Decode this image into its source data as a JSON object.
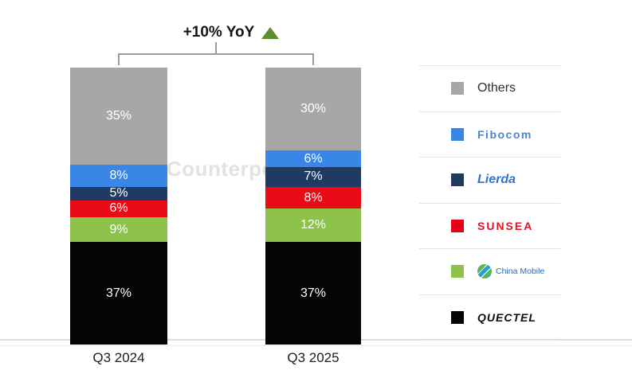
{
  "chart_data": {
    "type": "bar",
    "stacked": true,
    "unit": "%",
    "annotation": "+10% YoY",
    "annotation_direction": "up",
    "annotation_triangle_color": "#5e8b33",
    "watermark": "Counterpoint",
    "categories": [
      "Q3 2024",
      "Q3 2025"
    ],
    "series": [
      {
        "name": "Quectel",
        "color": "#050505",
        "values": [
          37,
          37
        ]
      },
      {
        "name": "China Mobile",
        "color": "#8dc24a",
        "values": [
          9,
          12
        ]
      },
      {
        "name": "Sunsea",
        "color": "#e90c17",
        "values": [
          6,
          8
        ]
      },
      {
        "name": "Lierda",
        "color": "#203a63",
        "values": [
          5,
          7
        ]
      },
      {
        "name": "Fibocom",
        "color": "#3a86e6",
        "values": [
          8,
          6
        ]
      },
      {
        "name": "Others",
        "color": "#a7a7a7",
        "values": [
          35,
          30
        ]
      }
    ],
    "legend_position": "right",
    "grid": false,
    "ylim": [
      0,
      100
    ]
  },
  "legend": {
    "items": [
      {
        "label": "Others",
        "color": "#a7a7a7"
      },
      {
        "label": "Fibocom",
        "color": "#3a86e6"
      },
      {
        "label": "Lierda",
        "color": "#203a63"
      },
      {
        "label": "SUNSEA",
        "color": "#e60012"
      },
      {
        "label": "China Mobile",
        "color": "#8dc24a"
      },
      {
        "label": "QUECTEL",
        "color": "#050505"
      }
    ]
  }
}
